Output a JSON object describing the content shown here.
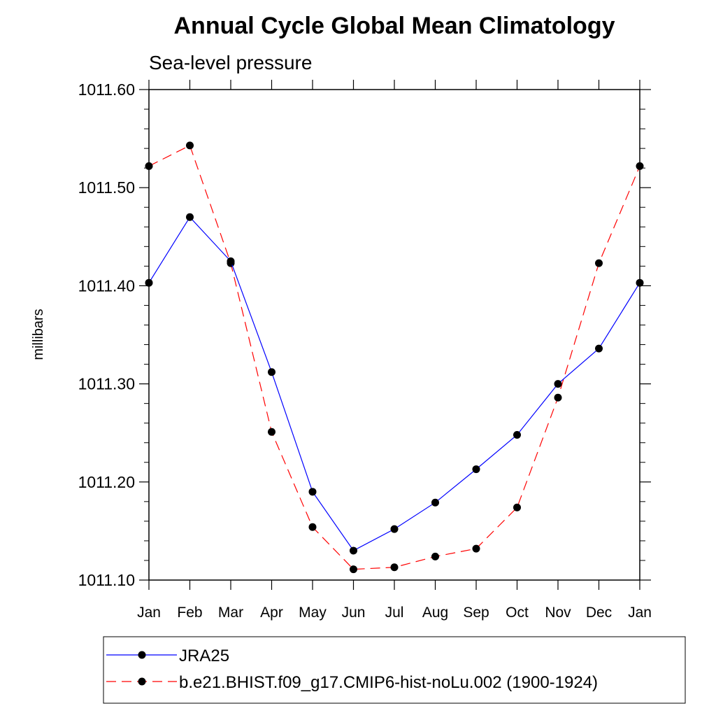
{
  "chart_data": {
    "type": "line",
    "title": "Annual Cycle Global Mean Climatology",
    "subtitle": "Sea-level pressure",
    "xlabel": "",
    "ylabel": "millibars",
    "categories": [
      "Jan",
      "Feb",
      "Mar",
      "Apr",
      "May",
      "Jun",
      "Jul",
      "Aug",
      "Sep",
      "Oct",
      "Nov",
      "Dec",
      "Jan"
    ],
    "ylim": [
      1011.1,
      1011.6
    ],
    "yticks": [
      "1011.10",
      "1011.20",
      "1011.30",
      "1011.40",
      "1011.50",
      "1011.60"
    ],
    "grid": false,
    "legend_position": "bottom",
    "series": [
      {
        "name": "JRA25",
        "color": "#0000ff",
        "line_style": "solid",
        "marker": "filled-circle",
        "values": [
          1011.403,
          1011.47,
          1011.425,
          1011.312,
          1011.19,
          1011.13,
          1011.152,
          1011.179,
          1011.213,
          1011.248,
          1011.3,
          1011.336,
          1011.403
        ]
      },
      {
        "name": "b.e21.BHIST.f09_g17.CMIP6-hist-noLu.002 (1900-1924)",
        "color": "#ff0000",
        "line_style": "dashed",
        "marker": "filled-circle",
        "values": [
          1011.522,
          1011.543,
          1011.423,
          1011.251,
          1011.154,
          1011.111,
          1011.113,
          1011.124,
          1011.132,
          1011.174,
          1011.286,
          1011.423,
          1011.522
        ]
      }
    ]
  }
}
